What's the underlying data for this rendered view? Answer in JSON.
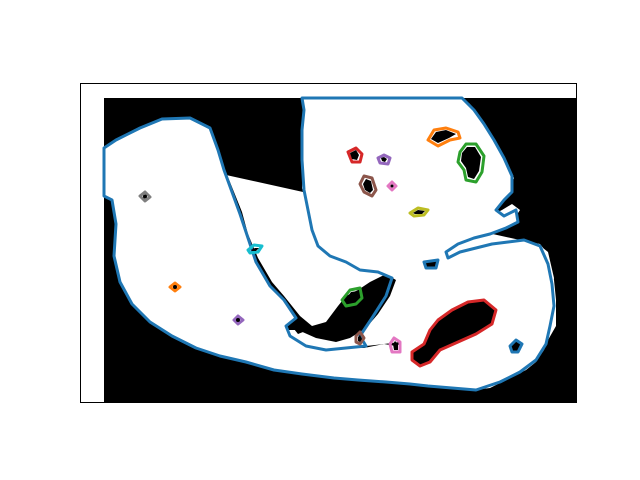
{
  "chart_data": {
    "type": "contour",
    "title": "",
    "xlabel": "",
    "ylabel": "",
    "axes_visible": false,
    "grid": false,
    "legend": "none",
    "background": "#000000",
    "foreground": "#ffffff",
    "colors": {
      "tab_blue": "#1f77b4",
      "tab_orange": "#ff7f0e",
      "tab_green": "#2ca02c",
      "tab_red": "#d62728",
      "tab_purple": "#9467bd",
      "tab_brown": "#8c564b",
      "tab_pink": "#e377c2",
      "tab_gray": "#7f7f7f",
      "tab_olive": "#bcbd22",
      "tab_cyan": "#17becf"
    },
    "contours": [
      {
        "id": "outer-boundary",
        "color": "tab_blue",
        "region": "main"
      },
      {
        "id": "hole-red-large",
        "color": "tab_red",
        "region": "lower-right"
      },
      {
        "id": "blob-red-small",
        "color": "tab_red",
        "region": "upper-right"
      },
      {
        "id": "blob-orange-top",
        "color": "tab_orange",
        "region": "upper-right"
      },
      {
        "id": "blob-green-right",
        "color": "tab_green",
        "region": "upper-right"
      },
      {
        "id": "blob-green-mid",
        "color": "tab_green",
        "region": "center"
      },
      {
        "id": "blob-purple-top",
        "color": "tab_purple",
        "region": "upper-right"
      },
      {
        "id": "blob-brown-top",
        "color": "tab_brown",
        "region": "upper-right"
      },
      {
        "id": "blob-pink-top",
        "color": "tab_pink",
        "region": "upper-right"
      },
      {
        "id": "blob-olive",
        "color": "tab_olive",
        "region": "upper-right"
      },
      {
        "id": "blob-gray",
        "color": "tab_gray",
        "region": "left"
      },
      {
        "id": "blob-cyan",
        "color": "tab_cyan",
        "region": "left-center"
      },
      {
        "id": "blob-orange-left",
        "color": "tab_orange",
        "region": "left"
      },
      {
        "id": "blob-purple-bottom",
        "color": "tab_purple",
        "region": "lower-left"
      },
      {
        "id": "blob-brown-bottom",
        "color": "tab_brown",
        "region": "lower-center"
      },
      {
        "id": "blob-pink-bottom",
        "color": "tab_pink",
        "region": "lower-center"
      }
    ]
  }
}
